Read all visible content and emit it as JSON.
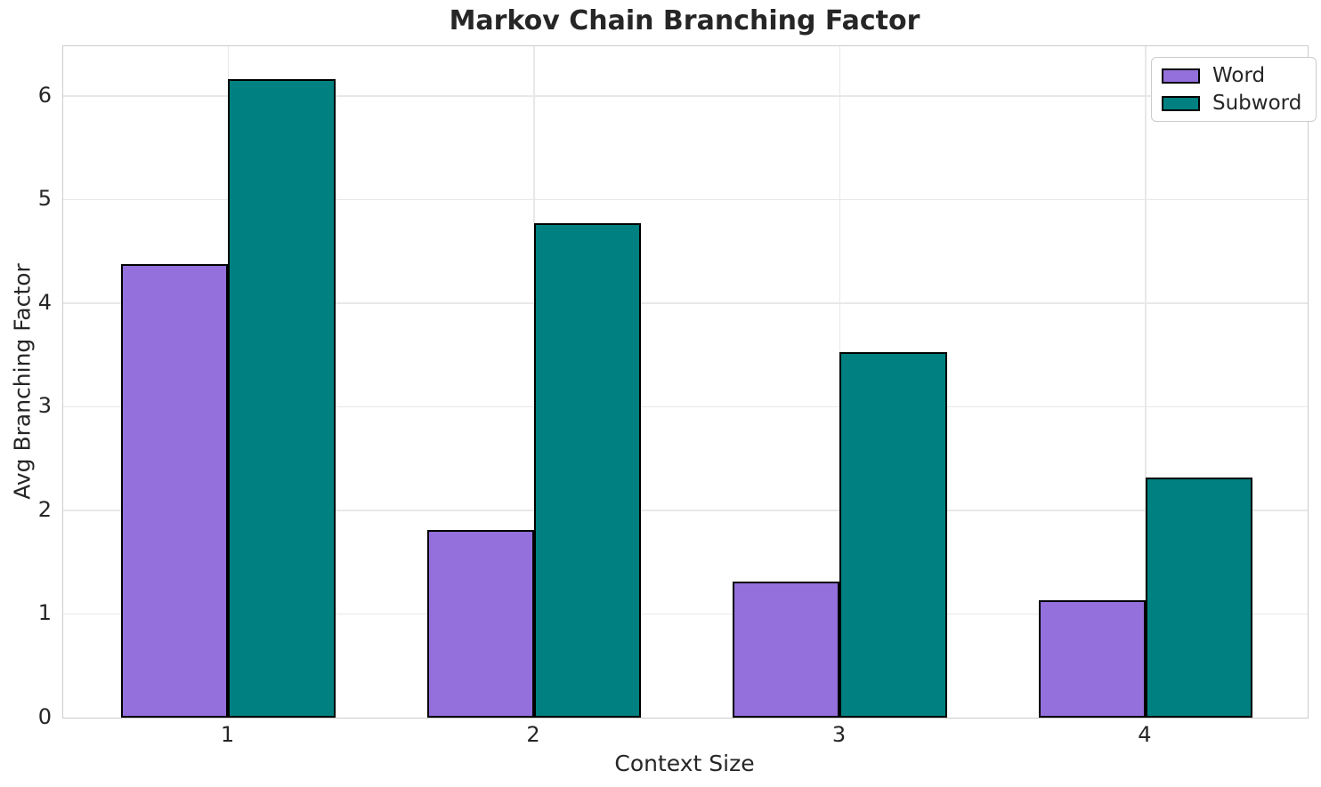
{
  "chart_data": {
    "type": "bar",
    "title": "Markov Chain Branching Factor",
    "xlabel": "Context Size",
    "ylabel": "Avg Branching Factor",
    "categories": [
      "1",
      "2",
      "3",
      "4"
    ],
    "series": [
      {
        "name": "Word",
        "color": "#9370DB",
        "values": [
          4.38,
          1.81,
          1.31,
          1.13
        ]
      },
      {
        "name": "Subword",
        "color": "#008080",
        "values": [
          6.16,
          4.77,
          3.53,
          2.32
        ]
      }
    ],
    "ylim": [
      0,
      6.48
    ],
    "yticks": [
      0,
      1,
      2,
      3,
      4,
      5,
      6
    ],
    "xlim": [
      -0.54,
      3.53
    ],
    "bar_width_units": 0.35,
    "bar_edge_color": "#000000",
    "grid": true,
    "legend": {
      "position": "upper right",
      "entries": [
        "Word",
        "Subword"
      ]
    },
    "text_color": "#262626",
    "grid_color": "#e8e8e8",
    "spine_color": "#cccccc",
    "background": "#ffffff"
  }
}
